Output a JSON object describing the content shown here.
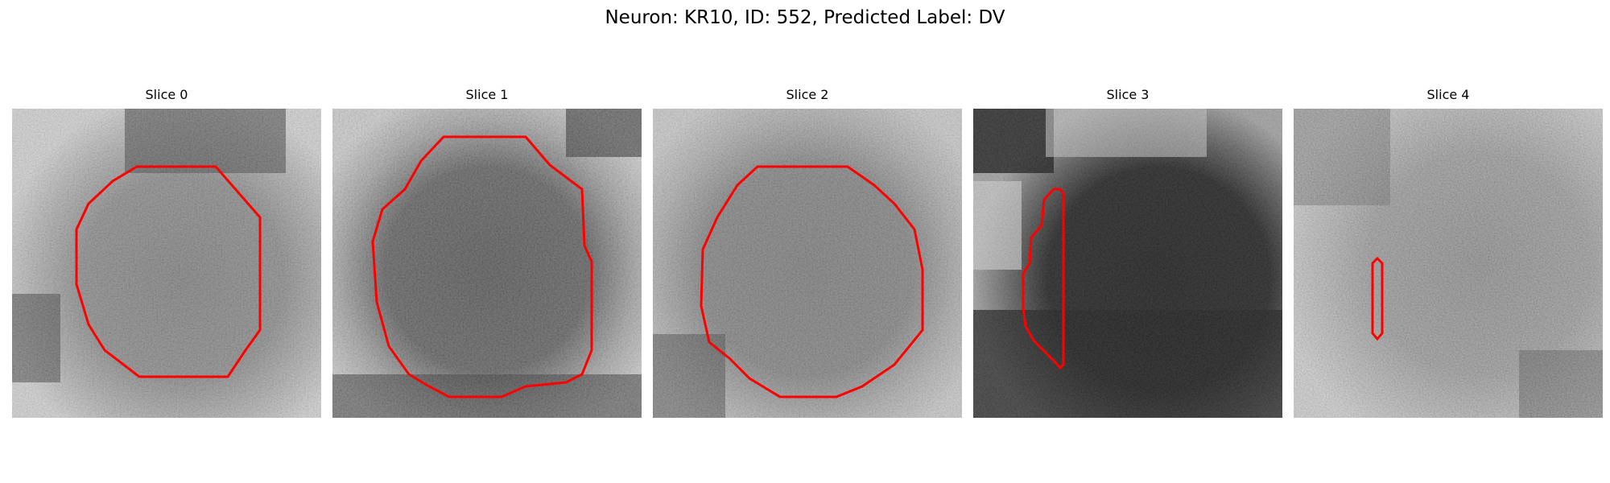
{
  "figure": {
    "title": "Neuron: KR10, ID: 552, Predicted Label: DV"
  },
  "colors": {
    "contour": "#ff0000",
    "background": "#ffffff"
  },
  "panels": [
    {
      "title": "Slice 0"
    },
    {
      "title": "Slice 1"
    },
    {
      "title": "Slice 2"
    },
    {
      "title": "Slice 3"
    },
    {
      "title": "Slice 4"
    }
  ]
}
